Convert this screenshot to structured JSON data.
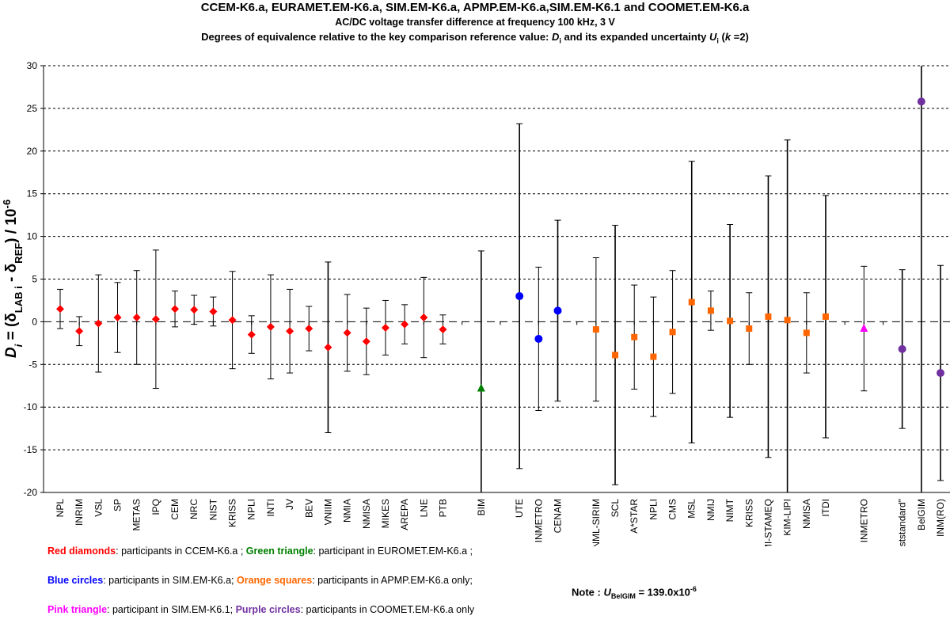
{
  "chart_data": {
    "type": "scatter",
    "title": "CCEM-K6.a, EURAMET.EM-K6.a,  SIM.EM-K6.a,  APMP.EM-K6.a,SIM.EM-K6.1  and COOMET.EM-K6.a",
    "subtitle_1": "AC/DC  voltage transfer difference at frequency 100 kHz, 3 V",
    "subtitle_2_parts": [
      "Degrees of equivalence relative to the key comparison reference value: ",
      "D",
      "i",
      " and its expanded uncertainty ",
      "U",
      "i",
      " (",
      "k",
      " =2)"
    ],
    "ylabel_parts": [
      "D",
      "i",
      " = (δ",
      "LAB i",
      " - δ",
      "REF",
      ") / 10",
      "-6"
    ],
    "ylim": [
      -20,
      30
    ],
    "yticks": [
      "30",
      "25",
      "20",
      "15",
      "10",
      "5",
      "0",
      "-5",
      "-10",
      "-15",
      "-20"
    ],
    "grid": "dashed horizontal lines every 5",
    "colors": {
      "red": "#ff0000",
      "green": "#008000",
      "blue": "#0000ff",
      "orange": "#ff6600",
      "pink": "#ff00ff",
      "purple": "#7030a0"
    },
    "series": [
      {
        "marker": "diamond",
        "color": "#ff0000",
        "points": [
          {
            "x": "NPL",
            "y": 1.5,
            "u": 2.3
          },
          {
            "x": "INRIM",
            "y": -1.1,
            "u": 1.7
          },
          {
            "x": "VSL",
            "y": -0.2,
            "u": 5.7
          },
          {
            "x": "SP",
            "y": 0.5,
            "u": 4.1
          },
          {
            "x": "METAS",
            "y": 0.5,
            "u": 5.5
          },
          {
            "x": "IPQ",
            "y": 0.3,
            "u": 8.1
          },
          {
            "x": "CEM",
            "y": 1.5,
            "u": 2.1
          },
          {
            "x": "NRC",
            "y": 1.4,
            "u": 1.7
          },
          {
            "x": "NIST",
            "y": 1.2,
            "u": 1.7
          },
          {
            "x": "KRISS",
            "y": 0.2,
            "u": 5.7
          },
          {
            "x": "NPLI",
            "y": -1.5,
            "u": 2.2
          },
          {
            "x": "INTI",
            "y": -0.6,
            "u": 6.1
          },
          {
            "x": "JV",
            "y": -1.1,
            "u": 4.9
          },
          {
            "x": "BEV",
            "y": -0.8,
            "u": 2.6
          },
          {
            "x": "VNIIM",
            "y": -3.0,
            "u": 10.0
          },
          {
            "x": "NMIA",
            "y": -1.3,
            "u": 4.5
          },
          {
            "x": "NMISA",
            "y": -2.3,
            "u": 3.9
          },
          {
            "x": "MIKES",
            "y": -0.7,
            "u": 3.2
          },
          {
            "x": "AREPA",
            "y": -0.3,
            "u": 2.3
          },
          {
            "x": "LNE",
            "y": 0.5,
            "u": 4.7
          },
          {
            "x": "PTB",
            "y": -0.9,
            "u": 1.7
          }
        ]
      },
      {
        "marker": "triangle",
        "color": "#008000",
        "points": [
          {
            "x": "BIM",
            "y": -7.8,
            "u": 16.1
          }
        ]
      },
      {
        "marker": "circle",
        "color": "#0000ff",
        "points": [
          {
            "x": "UTE",
            "y": 3.0,
            "u": 20.2
          },
          {
            "x": "INMETRO",
            "y": -2.0,
            "u": 8.4
          },
          {
            "x": "CENAM",
            "y": 1.3,
            "u": 10.6
          }
        ]
      },
      {
        "marker": "square",
        "color": "#ff6600",
        "points": [
          {
            "x": "NML-SIRIM",
            "y": -0.9,
            "u": 8.4
          },
          {
            "x": "SCL",
            "y": -3.9,
            "u": 15.2
          },
          {
            "x": "A*STAR",
            "y": -1.8,
            "u": 6.1
          },
          {
            "x": "NPLI",
            "y": -4.1,
            "u": 7.0
          },
          {
            "x": "CMS",
            "y": -1.2,
            "u": 7.2
          },
          {
            "x": "MSL",
            "y": 2.3,
            "u": 16.5
          },
          {
            "x": "NMIJ",
            "y": 1.3,
            "u": 2.3
          },
          {
            "x": "NIMT",
            "y": 0.1,
            "u": 11.3
          },
          {
            "x": "KRISS",
            "y": -0.8,
            "u": 4.2
          },
          {
            "x": "VMI-STAMEQ",
            "y": 0.6,
            "u": 16.5
          },
          {
            "x": "KIM-LIPI",
            "y": 0.2,
            "u": 21.1
          },
          {
            "x": "NMISA",
            "y": -1.3,
            "u": 4.7
          },
          {
            "x": "ITDI",
            "y": 0.6,
            "u": 14.2
          }
        ]
      },
      {
        "marker": "triangle",
        "color": "#ff00ff",
        "points": [
          {
            "x": "INMETRO",
            "y": -0.8,
            "u": 7.3
          }
        ]
      },
      {
        "marker": "circle",
        "color": "#7030a0",
        "points": [
          {
            "x": "SE \"Ukrmetrteststandard\"",
            "y": -3.2,
            "u": 9.3
          },
          {
            "x": "BelGIM",
            "y": 25.8,
            "u": 139.0
          },
          {
            "x": "INM(RO)",
            "y": -6.0,
            "u": 12.6
          }
        ]
      }
    ]
  },
  "legend": {
    "line1": [
      {
        "text": "Red diamonds",
        "style": "red"
      },
      {
        "text": ": participants in CCEM-K6.a ; ",
        "style": "plain"
      },
      {
        "text": "Green triangle",
        "style": "green"
      },
      {
        "text": ": participant in EUROMET.EM-K6.a ;",
        "style": "plain"
      }
    ],
    "line2": [
      {
        "text": "Blue circles",
        "style": "blue"
      },
      {
        "text": ": participants in SIM.EM-K6.a; ",
        "style": "plain"
      },
      {
        "text": "Orange squares",
        "style": "orange"
      },
      {
        "text": ": participants in  APMP.EM-K6.a only;",
        "style": "plain"
      }
    ],
    "line3": [
      {
        "text": "Pink triangle",
        "style": "pink"
      },
      {
        "text": ": participant in SIM.EM-K6.1; ",
        "style": "plain"
      },
      {
        "text": "Purple circles",
        "style": "purple"
      },
      {
        "text": ": participants in COOMET.EM-K6.a only",
        "style": "plain"
      }
    ]
  },
  "note": {
    "prefix": "Note : ",
    "symbol": "U",
    "symbol_sub": "BelGIM",
    "value": " = 139.0x10",
    "value_sup": "-6"
  }
}
